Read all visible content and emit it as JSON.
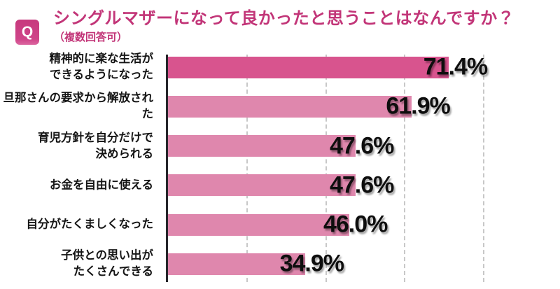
{
  "header": {
    "badge_label": "Q",
    "title": "シングルマザーになって良かったと思うことはなんですか？",
    "subtitle": "（複数回答可）"
  },
  "colors": {
    "accent": "#c23578",
    "badge_bg": "#c93d80",
    "axis": "#26262b",
    "gridline": "#c8c8c8",
    "bar_highlight": "#d8548e",
    "bar_normal": "#df87ad",
    "value_text": "#0e0e0e",
    "label_text": "#141414"
  },
  "chart_data": {
    "type": "bar",
    "orientation": "horizontal",
    "title": "シングルマザーになって良かったと思うことはなんですか？",
    "subtitle": "（複数回答可）",
    "categories": [
      "精神的に楽な生活ができるようになった",
      "旦那さんの要求から解放された",
      "育児方針を自分だけで決められる",
      "お金を自由に使える",
      "自分がたくましくなった",
      "子供との思い出がたくさんできる"
    ],
    "category_lines": [
      [
        "精神的に楽な生活が",
        "できるようになった"
      ],
      [
        "旦那さんの要求から解放された"
      ],
      [
        "育児方針を自分だけで",
        "決められる"
      ],
      [
        "お金を自由に使える"
      ],
      [
        "自分がたくましくなった"
      ],
      [
        "子供との思い出が",
        "たくさんできる"
      ]
    ],
    "values": [
      71.4,
      61.9,
      47.6,
      47.6,
      46.0,
      34.9
    ],
    "value_labels": [
      "71.4%",
      "61.9%",
      "47.6%",
      "47.6%",
      "46.0%",
      "34.9%"
    ],
    "bar_colors": [
      "#d8548e",
      "#df87ad",
      "#df87ad",
      "#df87ad",
      "#df87ad",
      "#df87ad"
    ],
    "xlim": [
      0,
      100
    ],
    "gridlines_percent": [
      20,
      40,
      60,
      80
    ],
    "grid": true,
    "legend": false,
    "xlabel": "",
    "ylabel": ""
  }
}
